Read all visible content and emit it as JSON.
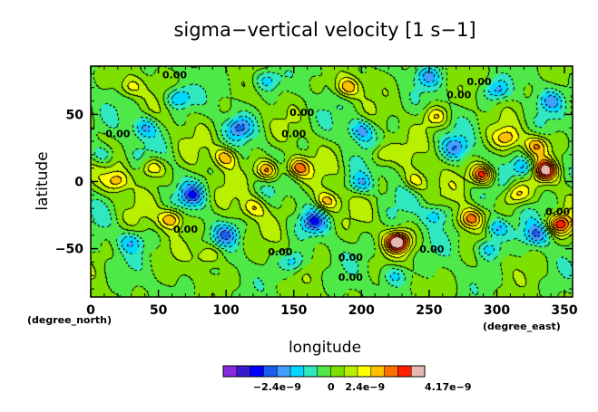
{
  "chart_data": {
    "type": "heatmap",
    "title": "sigma−vertical velocity [1 s−1]",
    "xlabel": "longitude",
    "ylabel": "latitude",
    "x_unit": "(degree_east)",
    "y_unit": "(degree_north)",
    "xlim": [
      0,
      356
    ],
    "ylim": [
      -86,
      86
    ],
    "x_ticks": [
      {
        "value": 0,
        "label": "0"
      },
      {
        "value": 50,
        "label": "50"
      },
      {
        "value": 100,
        "label": "100"
      },
      {
        "value": 150,
        "label": "150"
      },
      {
        "value": 200,
        "label": "200"
      },
      {
        "value": 250,
        "label": "250"
      },
      {
        "value": 300,
        "label": "300"
      },
      {
        "value": 350,
        "label": "350"
      }
    ],
    "y_ticks": [
      {
        "value": 50,
        "label": "50"
      },
      {
        "value": 0,
        "label": "0"
      },
      {
        "value": -50,
        "label": "−50"
      }
    ],
    "colorbar": {
      "colors": [
        "#8a2be2",
        "#3a1ad0",
        "#0000ff",
        "#1a5cf0",
        "#3fa0ff",
        "#00d8ff",
        "#30e8c0",
        "#4ee848",
        "#7ee000",
        "#b8f000",
        "#ffff00",
        "#ffc000",
        "#ff7000",
        "#ff2000",
        "#e8b8b0"
      ],
      "labels": [
        {
          "value": -2.4e-09,
          "label": "−2.4e−9"
        },
        {
          "value": 0,
          "label": "0"
        },
        {
          "value": 2.4e-09,
          "label": "2.4e−9"
        },
        {
          "value": 4.17e-09,
          "label": "4.17e−9"
        }
      ]
    },
    "contour_labels": [
      {
        "lon": 62,
        "lat": 77,
        "text": "0.00"
      },
      {
        "lon": 156,
        "lat": 49,
        "text": "0.00"
      },
      {
        "lon": 272,
        "lat": 62,
        "text": "0.00"
      },
      {
        "lon": 287,
        "lat": 72,
        "text": "0.00"
      },
      {
        "lon": 20,
        "lat": 33,
        "text": "0.00"
      },
      {
        "lon": 150,
        "lat": 33,
        "text": "0.00"
      },
      {
        "lon": 70,
        "lat": -38,
        "text": "0.00"
      },
      {
        "lon": 140,
        "lat": -55,
        "text": "0.00"
      },
      {
        "lon": 192,
        "lat": -59,
        "text": "0.00"
      },
      {
        "lon": 252,
        "lat": -53,
        "text": "0.00"
      },
      {
        "lon": 345,
        "lat": -25,
        "text": "0.00"
      },
      {
        "lon": 192,
        "lat": -74,
        "text": "0.00"
      }
    ],
    "extrema": [
      {
        "lon": 227,
        "lat": -45,
        "sign": 1,
        "amp": 4.17
      },
      {
        "lon": 290,
        "lat": 5,
        "sign": 1,
        "amp": 3.6
      },
      {
        "lon": 336,
        "lat": 8,
        "sign": 1,
        "amp": 3.3
      },
      {
        "lon": 347,
        "lat": -32,
        "sign": 1,
        "amp": 3.0
      },
      {
        "lon": 131,
        "lat": 8,
        "sign": 1,
        "amp": 2.9
      },
      {
        "lon": 153,
        "lat": 10,
        "sign": 1,
        "amp": 2.7
      },
      {
        "lon": 60,
        "lat": -28,
        "sign": 1,
        "amp": 2.6
      },
      {
        "lon": 280,
        "lat": -28,
        "sign": 1,
        "amp": 2.5
      },
      {
        "lon": 190,
        "lat": 70,
        "sign": 1,
        "amp": 2.3
      },
      {
        "lon": 45,
        "lat": 10,
        "sign": 1,
        "amp": 2.2
      },
      {
        "lon": 100,
        "lat": 18,
        "sign": 1,
        "amp": 2.2
      },
      {
        "lon": 175,
        "lat": -15,
        "sign": 1,
        "amp": 2.2
      },
      {
        "lon": 330,
        "lat": 27,
        "sign": 1,
        "amp": 2.1
      },
      {
        "lon": 315,
        "lat": -10,
        "sign": 1,
        "amp": 2.0
      },
      {
        "lon": 20,
        "lat": 0,
        "sign": 1,
        "amp": 2.0
      },
      {
        "lon": 255,
        "lat": 48,
        "sign": 1,
        "amp": 1.8
      },
      {
        "lon": 88,
        "lat": -55,
        "sign": 1,
        "amp": 1.6
      },
      {
        "lon": 308,
        "lat": 32,
        "sign": 1,
        "amp": 1.8
      },
      {
        "lon": 30,
        "lat": 70,
        "sign": 1,
        "amp": 1.5
      },
      {
        "lon": 215,
        "lat": 20,
        "sign": 1,
        "amp": 1.7
      },
      {
        "lon": 120,
        "lat": -20,
        "sign": 1,
        "amp": 1.6
      },
      {
        "lon": 240,
        "lat": 0,
        "sign": 1,
        "amp": 1.7
      },
      {
        "lon": 65,
        "lat": 62,
        "sign": -1,
        "amp": 2.0
      },
      {
        "lon": 110,
        "lat": 40,
        "sign": -1,
        "amp": 2.0
      },
      {
        "lon": 200,
        "lat": 38,
        "sign": -1,
        "amp": 1.9
      },
      {
        "lon": 250,
        "lat": 78,
        "sign": -1,
        "amp": 1.7
      },
      {
        "lon": 300,
        "lat": 68,
        "sign": -1,
        "amp": 1.9
      },
      {
        "lon": 270,
        "lat": 25,
        "sign": -1,
        "amp": 1.8
      },
      {
        "lon": 320,
        "lat": 10,
        "sign": -1,
        "amp": 2.2
      },
      {
        "lon": 300,
        "lat": -35,
        "sign": -1,
        "amp": 2.3
      },
      {
        "lon": 295,
        "lat": -50,
        "sign": -1,
        "amp": 1.9
      },
      {
        "lon": 330,
        "lat": -40,
        "sign": -1,
        "amp": 1.9
      },
      {
        "lon": 165,
        "lat": -30,
        "sign": -1,
        "amp": 2.3
      },
      {
        "lon": 75,
        "lat": -10,
        "sign": -1,
        "amp": 2.2
      },
      {
        "lon": 10,
        "lat": 20,
        "sign": -1,
        "amp": 1.6
      },
      {
        "lon": 40,
        "lat": 40,
        "sign": -1,
        "amp": 1.8
      },
      {
        "lon": 150,
        "lat": -60,
        "sign": -1,
        "amp": 1.7
      },
      {
        "lon": 200,
        "lat": -2,
        "sign": -1,
        "amp": 1.7
      },
      {
        "lon": 340,
        "lat": 60,
        "sign": -1,
        "amp": 1.6
      },
      {
        "lon": 255,
        "lat": -25,
        "sign": -1,
        "amp": 1.7
      },
      {
        "lon": 130,
        "lat": 75,
        "sign": -1,
        "amp": 1.6
      },
      {
        "lon": 100,
        "lat": -40,
        "sign": -1,
        "amp": 1.8
      },
      {
        "lon": 30,
        "lat": -45,
        "sign": -1,
        "amp": 1.6
      },
      {
        "lon": 225,
        "lat": -70,
        "sign": -1,
        "amp": 1.5
      }
    ]
  }
}
